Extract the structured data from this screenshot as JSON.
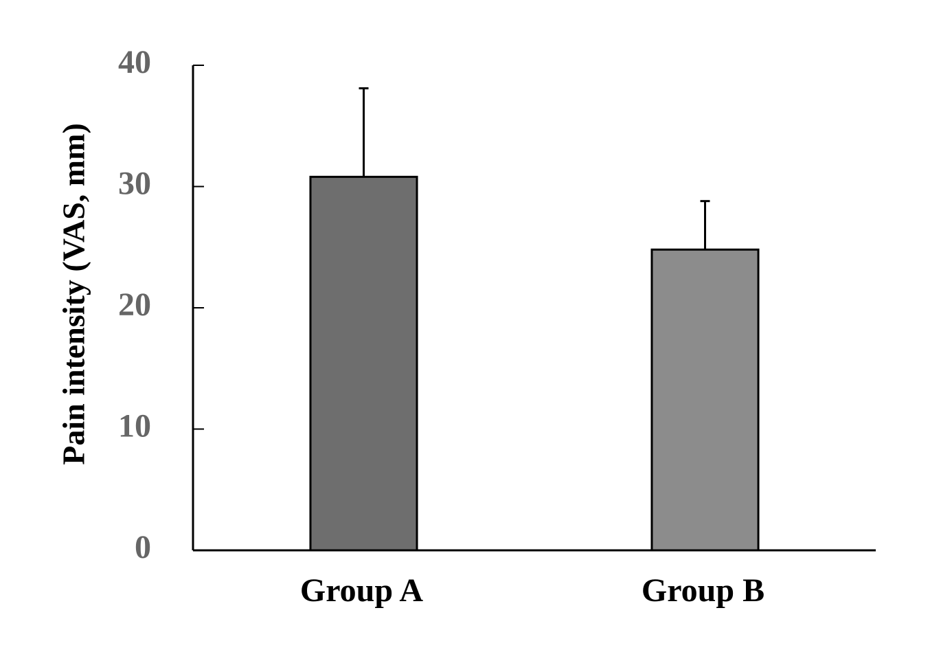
{
  "chart_data": {
    "type": "bar",
    "y_label": "Pain intensity (VAS, mm)",
    "categories": [
      "Group A",
      "Group B"
    ],
    "values": [
      30.8,
      24.8
    ],
    "errors": [
      7.3,
      4.0
    ],
    "colors": [
      "#6e6e6e",
      "#8c8c8c"
    ],
    "ylim": [
      0,
      40
    ],
    "yticks": [
      0,
      10,
      20,
      30,
      40
    ],
    "grid": false
  }
}
